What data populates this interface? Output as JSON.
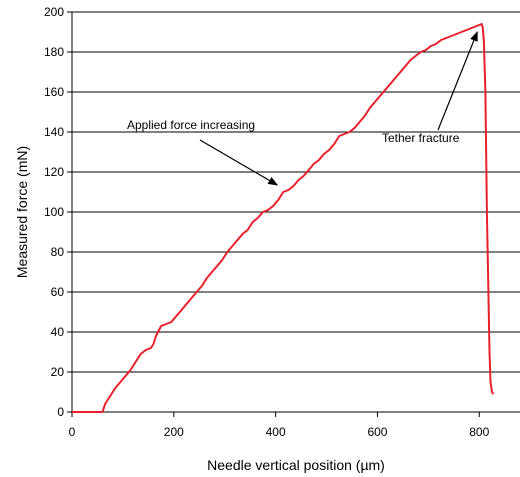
{
  "chart_data": {
    "type": "line",
    "xlabel": "Needle vertical position (µm)",
    "ylabel": "Measured force (mN)",
    "xlim": [
      0,
      880
    ],
    "ylim": [
      0,
      200
    ],
    "x_ticks": [
      0,
      200,
      400,
      600,
      800
    ],
    "y_ticks": [
      0,
      20,
      40,
      60,
      80,
      100,
      120,
      140,
      160,
      180,
      200
    ],
    "grid": "horizontal",
    "series": [
      {
        "color": "#e8202a",
        "points": [
          [
            0,
            0
          ],
          [
            55,
            0
          ],
          [
            60,
            0
          ],
          [
            65,
            4
          ],
          [
            75,
            8
          ],
          [
            85,
            12
          ],
          [
            95,
            15
          ],
          [
            105,
            18
          ],
          [
            115,
            21
          ],
          [
            125,
            25
          ],
          [
            135,
            29
          ],
          [
            145,
            31
          ],
          [
            155,
            32
          ],
          [
            160,
            34
          ],
          [
            165,
            38
          ],
          [
            175,
            43
          ],
          [
            185,
            44
          ],
          [
            195,
            45
          ],
          [
            205,
            48
          ],
          [
            215,
            51
          ],
          [
            225,
            54
          ],
          [
            235,
            57
          ],
          [
            245,
            60
          ],
          [
            255,
            63
          ],
          [
            265,
            67
          ],
          [
            275,
            70
          ],
          [
            285,
            73
          ],
          [
            295,
            76
          ],
          [
            305,
            80
          ],
          [
            315,
            83
          ],
          [
            325,
            86
          ],
          [
            335,
            89
          ],
          [
            345,
            91
          ],
          [
            355,
            95
          ],
          [
            365,
            97
          ],
          [
            375,
            100
          ],
          [
            385,
            101
          ],
          [
            395,
            103
          ],
          [
            405,
            106
          ],
          [
            415,
            110
          ],
          [
            425,
            111
          ],
          [
            435,
            113
          ],
          [
            445,
            116
          ],
          [
            455,
            118
          ],
          [
            465,
            121
          ],
          [
            475,
            124
          ],
          [
            485,
            126
          ],
          [
            495,
            129
          ],
          [
            505,
            131
          ],
          [
            515,
            134
          ],
          [
            525,
            138
          ],
          [
            535,
            139
          ],
          [
            545,
            140
          ],
          [
            555,
            142
          ],
          [
            565,
            145
          ],
          [
            575,
            148
          ],
          [
            585,
            152
          ],
          [
            595,
            155
          ],
          [
            605,
            158
          ],
          [
            615,
            161
          ],
          [
            625,
            164
          ],
          [
            635,
            167
          ],
          [
            645,
            170
          ],
          [
            655,
            173
          ],
          [
            665,
            176
          ],
          [
            675,
            178
          ],
          [
            685,
            180
          ],
          [
            695,
            181
          ],
          [
            705,
            183
          ],
          [
            715,
            184
          ],
          [
            725,
            186
          ],
          [
            735,
            187
          ],
          [
            745,
            188
          ],
          [
            755,
            189
          ],
          [
            765,
            190
          ],
          [
            775,
            191
          ],
          [
            785,
            192
          ],
          [
            795,
            193
          ],
          [
            805,
            194
          ],
          [
            807,
            192
          ],
          [
            809,
            185
          ],
          [
            812,
            160
          ],
          [
            815,
            100
          ],
          [
            818,
            60
          ],
          [
            820,
            30
          ],
          [
            822,
            15
          ],
          [
            825,
            10
          ],
          [
            828,
            9
          ]
        ]
      }
    ],
    "annotations": [
      {
        "text": "Applied force increasing",
        "arrow_to": [
          415,
          111
        ]
      },
      {
        "text": "Tether fracture",
        "arrow_to": [
          800,
          192
        ]
      }
    ]
  }
}
